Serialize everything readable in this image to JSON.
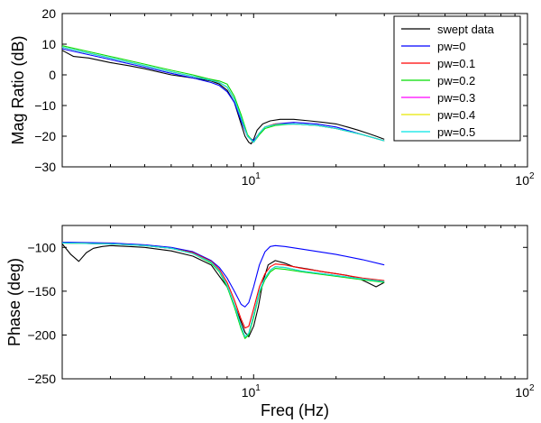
{
  "chart_data": [
    {
      "type": "line",
      "xscale": "log",
      "xlim": [
        2,
        100
      ],
      "ylim": [
        -30,
        20
      ],
      "ylabel": "Mag Ratio (dB)",
      "xlabel": "",
      "yticks": [
        "−30",
        "−20",
        "−10",
        "0",
        "10",
        "20"
      ],
      "xticks": [
        {
          "base": "10",
          "exp": "1"
        },
        {
          "base": "10",
          "exp": "2"
        }
      ],
      "legend": {
        "placement": "top-right",
        "entries": [
          "swept data",
          "pw=0",
          "pw=0.1",
          "pw=0.2",
          "pw=0.3",
          "pw=0.4",
          "pw=0.5"
        ]
      },
      "series": [
        {
          "name": "swept data",
          "color": "#000000",
          "x": [
            2,
            2.2,
            2.5,
            3,
            3.5,
            4,
            5,
            6,
            7,
            7.5,
            8,
            8.5,
            9,
            9.3,
            9.6,
            9.8,
            10,
            10.3,
            10.8,
            11.5,
            12.5,
            14,
            16,
            18,
            20,
            22,
            24,
            26,
            28,
            30
          ],
          "y": [
            8,
            6,
            5.5,
            4,
            3,
            2,
            0,
            -1,
            -2,
            -3,
            -5,
            -9,
            -16,
            -20,
            -22,
            -22.5,
            -21,
            -18,
            -16,
            -15,
            -14.5,
            -14.5,
            -15,
            -15.5,
            -16,
            -17,
            -18,
            -19,
            -20,
            -21
          ]
        },
        {
          "name": "pw=0",
          "color": "#0000ff",
          "x": [
            2,
            3,
            4,
            5,
            6,
            7,
            7.5,
            8,
            8.5,
            9,
            9.5,
            10,
            10.5,
            11,
            12,
            14,
            17,
            20,
            25,
            30
          ],
          "y": [
            8.5,
            5,
            2.5,
            0.5,
            -1,
            -2.5,
            -3.5,
            -5.5,
            -9,
            -15,
            -20,
            -21.5,
            -19,
            -17,
            -16,
            -15.5,
            -16,
            -17,
            -19.5,
            -21.5
          ]
        },
        {
          "name": "pw=0.1",
          "color": "#ff0000",
          "x": [
            2,
            3,
            4,
            5,
            6,
            7,
            7.5,
            8,
            8.5,
            9,
            9.5,
            10,
            10.5,
            11,
            12,
            14,
            17,
            20,
            25,
            30
          ],
          "y": [
            9,
            5.5,
            3,
            1,
            -0.5,
            -1.5,
            -2.5,
            -4,
            -8,
            -14,
            -20,
            -22,
            -19,
            -17,
            -16,
            -16,
            -16.5,
            -17.5,
            -19.5,
            -21.5
          ]
        },
        {
          "name": "pw=0.2",
          "color": "#00dd00",
          "x": [
            2,
            3,
            4,
            5,
            6,
            7,
            7.5,
            8,
            8.5,
            9,
            9.5,
            10,
            10.5,
            11,
            12,
            14,
            17,
            20,
            25,
            30
          ],
          "y": [
            9.5,
            6,
            3.5,
            1.5,
            0,
            -1.5,
            -2,
            -3,
            -7,
            -13,
            -19.5,
            -22,
            -19.5,
            -17.5,
            -16.5,
            -16,
            -16.5,
            -17.5,
            -19.5,
            -21.5
          ]
        },
        {
          "name": "pw=0.3",
          "color": "#ff00ff",
          "x": [
            2,
            3,
            4,
            5,
            6,
            7,
            7.5,
            8,
            8.5,
            9,
            9.5,
            10,
            10.5,
            11,
            12,
            14,
            17,
            20,
            25,
            30
          ],
          "y": [
            9,
            5.5,
            3,
            1,
            -0.5,
            -1.8,
            -2.5,
            -4,
            -8,
            -14,
            -20,
            -22,
            -19,
            -17,
            -16.2,
            -16,
            -16.5,
            -17.5,
            -19.5,
            -21.5
          ]
        },
        {
          "name": "pw=0.4",
          "color": "#e8e800",
          "x": [
            2,
            3,
            4,
            5,
            6,
            7,
            7.5,
            8,
            8.5,
            9,
            9.5,
            10,
            10.5,
            11,
            12,
            14,
            17,
            20,
            25,
            30
          ],
          "y": [
            9,
            5.5,
            3,
            1,
            -0.5,
            -1.8,
            -2.5,
            -4,
            -8,
            -14,
            -20,
            -22,
            -19,
            -17,
            -16.2,
            -16,
            -16.5,
            -17.5,
            -19.5,
            -21.5
          ]
        },
        {
          "name": "pw=0.5",
          "color": "#00e5e5",
          "x": [
            2,
            3,
            4,
            5,
            6,
            7,
            7.5,
            8,
            8.5,
            9,
            9.5,
            10,
            10.5,
            11,
            12,
            14,
            17,
            20,
            25,
            30
          ],
          "y": [
            9,
            5.5,
            3,
            1,
            -0.5,
            -1.8,
            -2.5,
            -4,
            -8,
            -14,
            -20,
            -22,
            -19,
            -17,
            -16.2,
            -16,
            -16.5,
            -17.5,
            -19.5,
            -21.5
          ]
        }
      ]
    },
    {
      "type": "line",
      "xscale": "log",
      "xlim": [
        2,
        100
      ],
      "ylim": [
        -250,
        -75
      ],
      "ylabel": "Phase (deg)",
      "xlabel": "Freq (Hz)",
      "yticks": [
        "−250",
        "−200",
        "−150",
        "−100"
      ],
      "xticks": [
        {
          "base": "10",
          "exp": "1"
        },
        {
          "base": "10",
          "exp": "2"
        }
      ],
      "series": [
        {
          "name": "swept data",
          "color": "#000000",
          "x": [
            2,
            2.15,
            2.3,
            2.45,
            2.6,
            2.8,
            3,
            3.5,
            4,
            5,
            6,
            7,
            7.5,
            8,
            8.5,
            9,
            9.3,
            9.6,
            10,
            10.4,
            10.8,
            11.3,
            12,
            13,
            14,
            16,
            18,
            20,
            22,
            24,
            26,
            28,
            30
          ],
          "y": [
            -96,
            -108,
            -116,
            -106,
            -101,
            -99,
            -98,
            -99,
            -100,
            -104,
            -110,
            -120,
            -133,
            -145,
            -165,
            -185,
            -197,
            -202,
            -190,
            -168,
            -140,
            -120,
            -115,
            -118,
            -122,
            -125,
            -128,
            -130,
            -132,
            -135,
            -140,
            -145,
            -140
          ]
        },
        {
          "name": "pw=0",
          "color": "#0000ff",
          "x": [
            2,
            3,
            4,
            5,
            6,
            7,
            7.5,
            8,
            8.5,
            9,
            9.3,
            9.6,
            10,
            10.5,
            11,
            11.5,
            12,
            13,
            15,
            20,
            25,
            30
          ],
          "y": [
            -94,
            -95,
            -97,
            -100,
            -105,
            -115,
            -123,
            -135,
            -150,
            -165,
            -168,
            -163,
            -145,
            -120,
            -105,
            -99,
            -98,
            -99,
            -102,
            -108,
            -114,
            -120
          ]
        },
        {
          "name": "pw=0.1",
          "color": "#ff0000",
          "x": [
            2,
            3,
            4,
            5,
            6,
            7,
            7.5,
            8,
            8.5,
            9,
            9.3,
            9.6,
            10,
            10.5,
            11,
            11.5,
            12,
            13,
            15,
            20,
            25,
            30
          ],
          "y": [
            -95,
            -96,
            -98,
            -101,
            -106,
            -116,
            -125,
            -140,
            -160,
            -182,
            -192,
            -190,
            -170,
            -145,
            -130,
            -122,
            -119,
            -120,
            -124,
            -130,
            -135,
            -138
          ]
        },
        {
          "name": "pw=0.2",
          "color": "#00dd00",
          "x": [
            2,
            3,
            4,
            5,
            6,
            7,
            7.5,
            8,
            8.5,
            9,
            9.3,
            9.6,
            10,
            10.5,
            11,
            11.5,
            12,
            13,
            15,
            20,
            25,
            30
          ],
          "y": [
            -95,
            -96,
            -98,
            -101,
            -107,
            -118,
            -128,
            -145,
            -168,
            -193,
            -204,
            -200,
            -180,
            -152,
            -137,
            -128,
            -124,
            -125,
            -128,
            -133,
            -137,
            -140
          ]
        },
        {
          "name": "pw=0.3",
          "color": "#ff00ff",
          "x": [
            2,
            3,
            4,
            5,
            6,
            7,
            7.5,
            8,
            8.5,
            9,
            9.3,
            9.6,
            10,
            10.5,
            11,
            11.5,
            12,
            13,
            15,
            20,
            25,
            30
          ],
          "y": [
            -95,
            -96,
            -98,
            -101,
            -107,
            -117,
            -127,
            -143,
            -165,
            -190,
            -202,
            -198,
            -177,
            -150,
            -135,
            -126,
            -122,
            -123,
            -127,
            -132,
            -136,
            -139
          ]
        },
        {
          "name": "pw=0.4",
          "color": "#e8e800",
          "x": [
            2,
            3,
            4,
            5,
            6,
            7,
            7.5,
            8,
            8.5,
            9,
            9.3,
            9.6,
            10,
            10.5,
            11,
            11.5,
            12,
            13,
            15,
            20,
            25,
            30
          ],
          "y": [
            -95,
            -96,
            -98,
            -101,
            -107,
            -117,
            -127,
            -143,
            -165,
            -190,
            -202,
            -198,
            -177,
            -150,
            -135,
            -126,
            -122,
            -123,
            -127,
            -132,
            -136,
            -139
          ]
        },
        {
          "name": "pw=0.5",
          "color": "#00e5e5",
          "x": [
            2,
            3,
            4,
            5,
            6,
            7,
            7.5,
            8,
            8.5,
            9,
            9.3,
            9.6,
            10,
            10.5,
            11,
            11.5,
            12,
            13,
            15,
            20,
            25,
            30
          ],
          "y": [
            -95,
            -96,
            -98,
            -101,
            -107,
            -117,
            -127,
            -143,
            -165,
            -190,
            -202,
            -198,
            -177,
            -150,
            -135,
            -126,
            -122,
            -123,
            -127,
            -132,
            -136,
            -139
          ]
        }
      ]
    }
  ]
}
